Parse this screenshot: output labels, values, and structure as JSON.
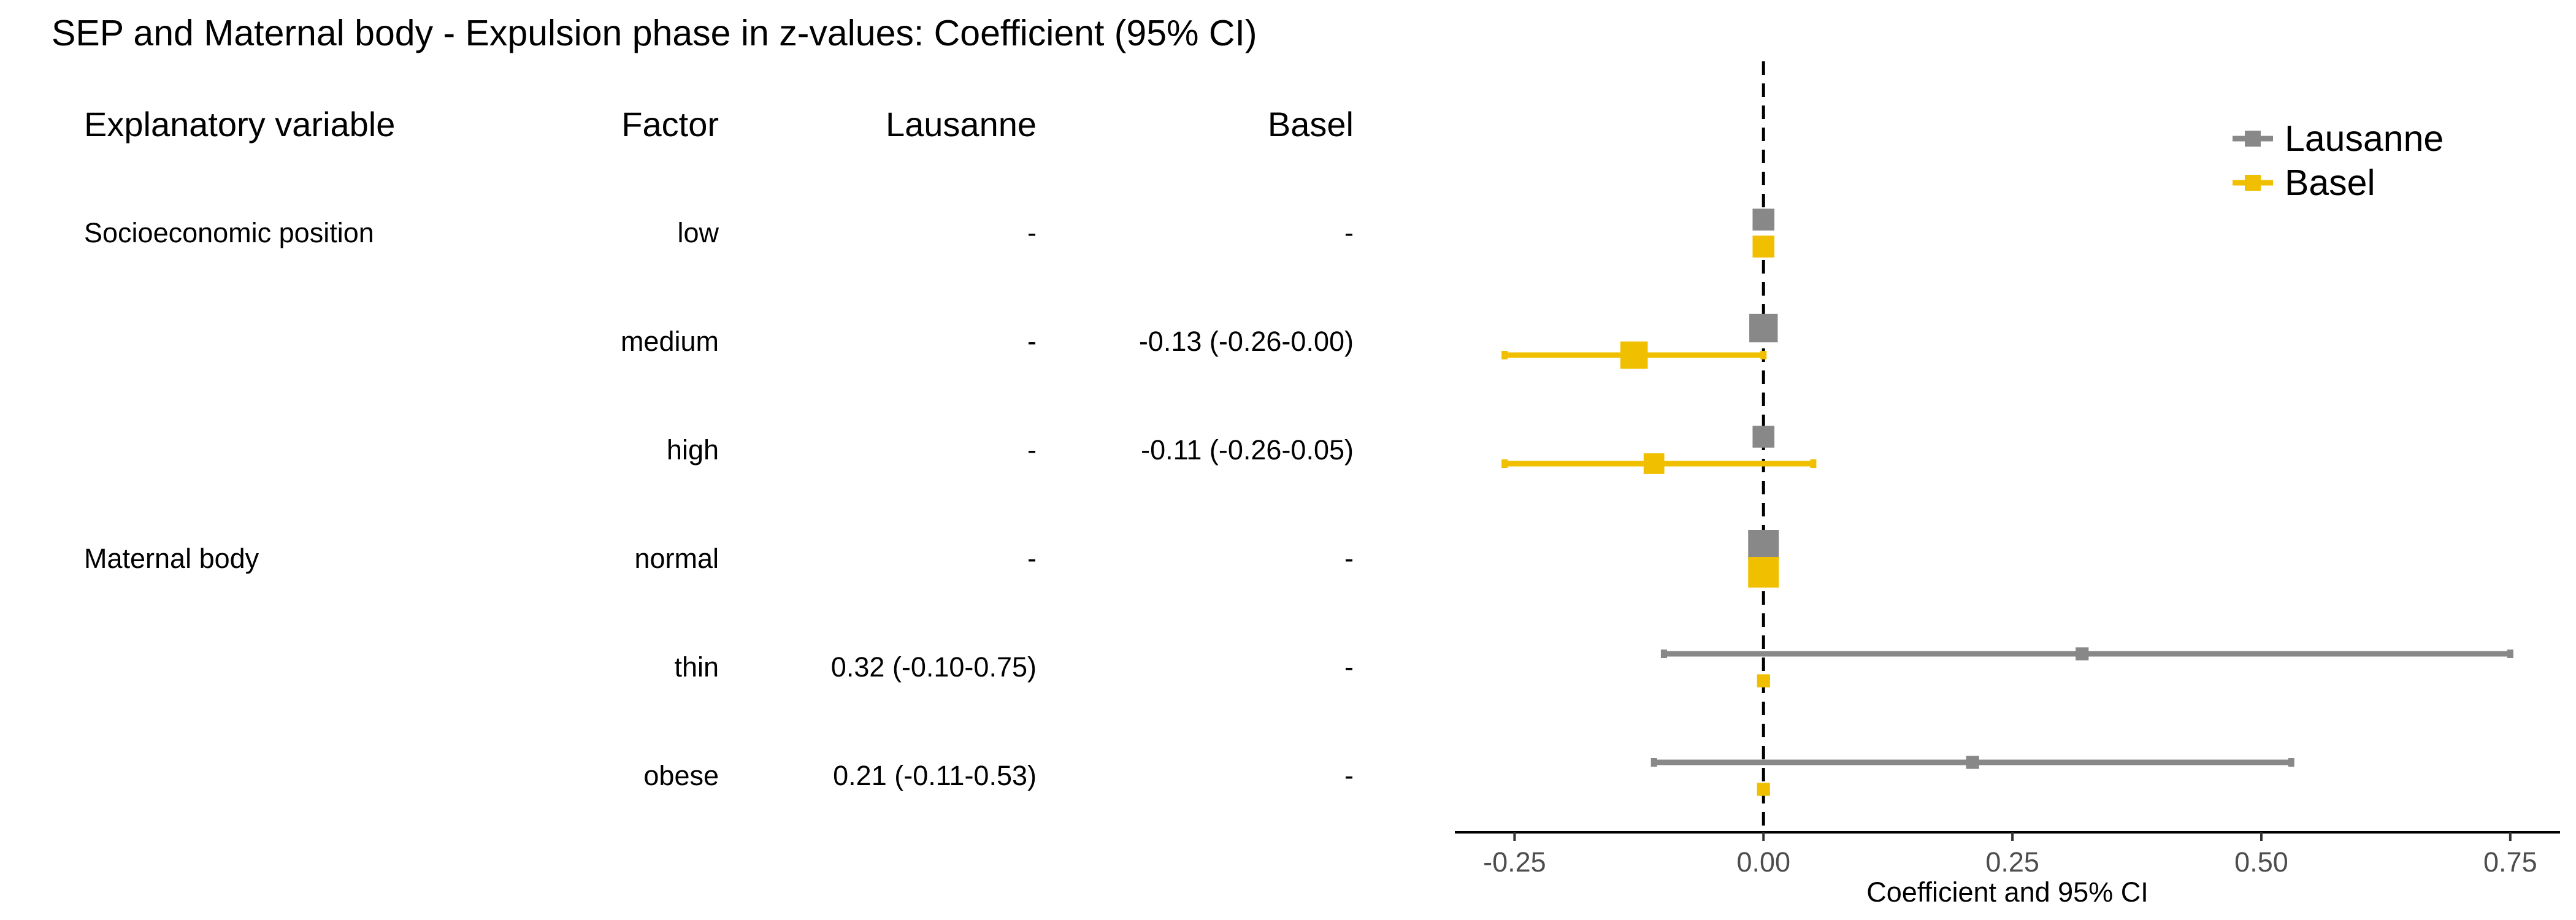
{
  "title": "SEP and Maternal body - Expulsion phase in z-values: Coefficient (95% CI)",
  "table": {
    "headers": {
      "variable": "Explanatory variable",
      "factor": "Factor",
      "lausanne": "Lausanne",
      "basel": "Basel"
    },
    "rows": [
      {
        "variable": "Socioeconomic position",
        "factor": "low",
        "lausanne": "-",
        "basel": "-"
      },
      {
        "variable": "",
        "factor": "medium",
        "lausanne": "-",
        "basel": "-0.13 (-0.26-0.00)"
      },
      {
        "variable": "",
        "factor": "high",
        "lausanne": "-",
        "basel": "-0.11 (-0.26-0.05)"
      },
      {
        "variable": "Maternal body",
        "factor": "normal",
        "lausanne": "-",
        "basel": "-"
      },
      {
        "variable": "",
        "factor": "thin",
        "lausanne": "0.32 (-0.10-0.75)",
        "basel": "-"
      },
      {
        "variable": "",
        "factor": "obese",
        "lausanne": "0.21 (-0.11-0.53)",
        "basel": "-"
      }
    ]
  },
  "chart_data": {
    "type": "scatter",
    "subtype": "forest-plot",
    "xlabel": "Coefficient and 95% CI",
    "xlim": [
      -0.31,
      0.8
    ],
    "xticks": [
      -0.25,
      0.0,
      0.25,
      0.5,
      0.75
    ],
    "xtick_labels": [
      "-0.25",
      "0.00",
      "0.25",
      "0.50",
      "0.75"
    ],
    "reference_line": 0,
    "legend_position": "top-right",
    "categories": [
      "low",
      "medium",
      "high",
      "normal",
      "thin",
      "obese"
    ],
    "series": [
      {
        "name": "Lausanne",
        "color": "#888888",
        "estimates": [
          0,
          0,
          0,
          0,
          0.32,
          0.21
        ],
        "lower": [
          null,
          null,
          null,
          null,
          -0.1,
          -0.11
        ],
        "upper": [
          null,
          null,
          null,
          null,
          0.75,
          0.53
        ],
        "marker_weight": [
          0.6,
          0.9,
          0.6,
          1.0,
          0.2,
          0.2
        ]
      },
      {
        "name": "Basel",
        "color": "#f0c000",
        "estimates": [
          0,
          -0.13,
          -0.11,
          0,
          0,
          0
        ],
        "lower": [
          null,
          -0.26,
          -0.26,
          null,
          null,
          null
        ],
        "upper": [
          null,
          0.0,
          0.05,
          null,
          null,
          null
        ],
        "marker_weight": [
          0.6,
          0.85,
          0.55,
          1.0,
          0.2,
          0.2
        ]
      }
    ]
  }
}
